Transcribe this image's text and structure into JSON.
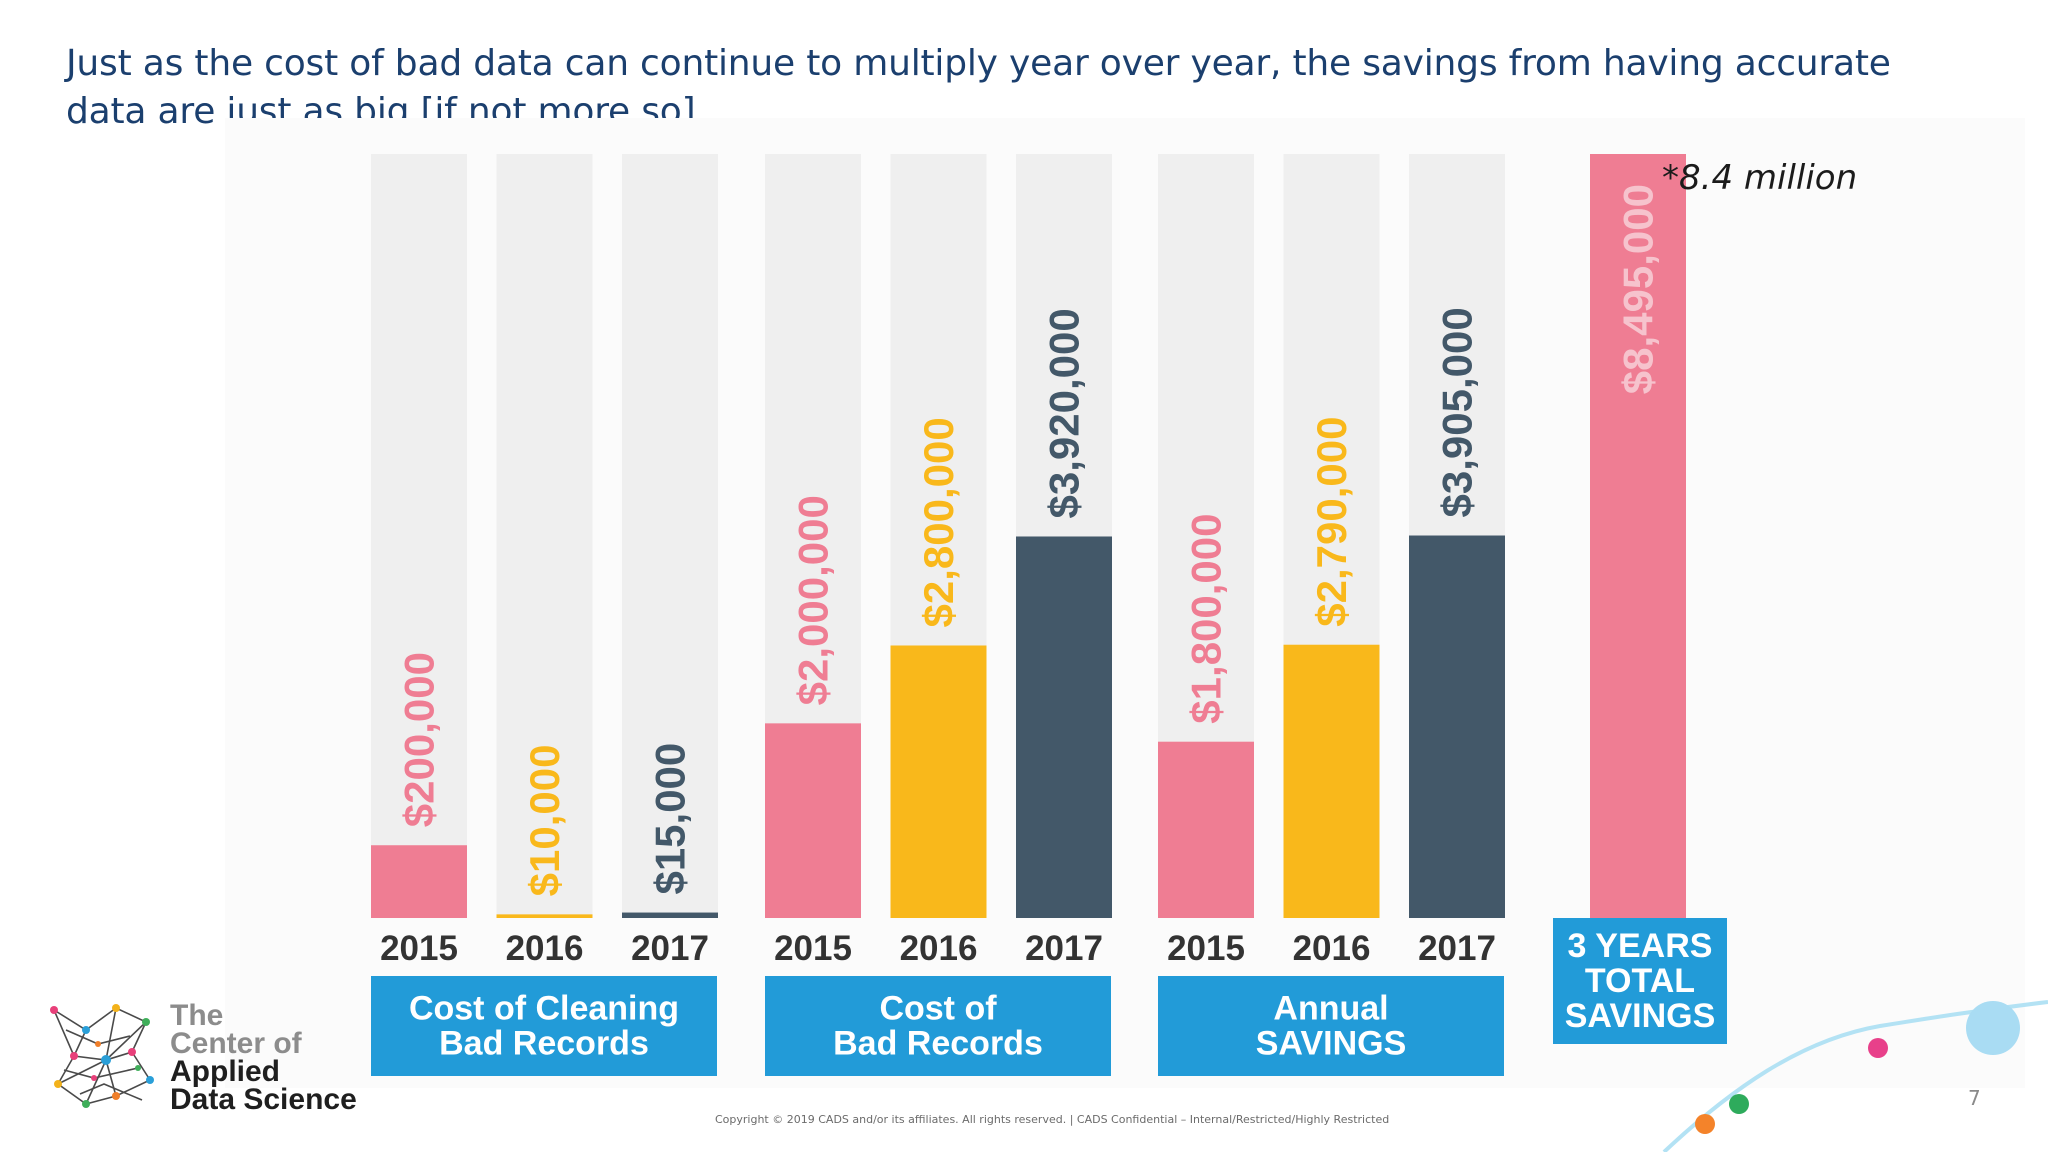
{
  "slide": {
    "title": "Just as the cost of bad data can continue to multiply year over year, the savings from having accurate data are just as big [if not more so]",
    "note": "*8.4 million",
    "copyright": "Copyright © 2019 CADS and/or its affiliates. All rights reserved.  |  CADS Confidential – Internal/Restricted/Highly Restricted",
    "page_number": "7",
    "logo": {
      "line1": "The",
      "line2": "Center of",
      "line3": "Applied",
      "line4": "Data Science"
    }
  },
  "colors": {
    "title": "#1b3f6e",
    "pink": "#ef7d93",
    "yellow": "#f9b81b",
    "slate": "#435869",
    "track": "#efefef",
    "label_box": "#229bd8",
    "axis_text": "#333333"
  },
  "chart_data": {
    "type": "bar",
    "scale": "per-group (bars normalized within each group)",
    "groups": [
      {
        "label": [
          "Cost of Cleaning",
          "Bad Records"
        ],
        "categories": [
          "2015",
          "2016",
          "2017"
        ],
        "values": [
          200000,
          10000,
          15000
        ],
        "value_labels": [
          "$200,000",
          "$10,000",
          "$15,000"
        ],
        "colors": [
          "pink",
          "yellow",
          "slate"
        ],
        "ymax": 2100000
      },
      {
        "label": [
          "Cost of",
          "Bad Records"
        ],
        "categories": [
          "2015",
          "2016",
          "2017"
        ],
        "values": [
          2000000,
          2800000,
          3920000
        ],
        "value_labels": [
          "$2,000,000",
          "$2,800,000",
          "$3,920,000"
        ],
        "colors": [
          "pink",
          "yellow",
          "slate"
        ],
        "ymax": 7850000
      },
      {
        "label": [
          "Annual",
          "SAVINGS"
        ],
        "categories": [
          "2015",
          "2016",
          "2017"
        ],
        "values": [
          1800000,
          2790000,
          3905000
        ],
        "value_labels": [
          "$1,800,000",
          "$2,790,000",
          "$3,905,000"
        ],
        "colors": [
          "pink",
          "yellow",
          "slate"
        ],
        "ymax": 7800000
      },
      {
        "label": [
          "3 YEARS",
          "TOTAL",
          "SAVINGS"
        ],
        "categories": [
          ""
        ],
        "values": [
          8495000
        ],
        "value_labels": [
          "$8,495,000"
        ],
        "colors": [
          "pink"
        ],
        "ymax": 8495000
      }
    ]
  }
}
